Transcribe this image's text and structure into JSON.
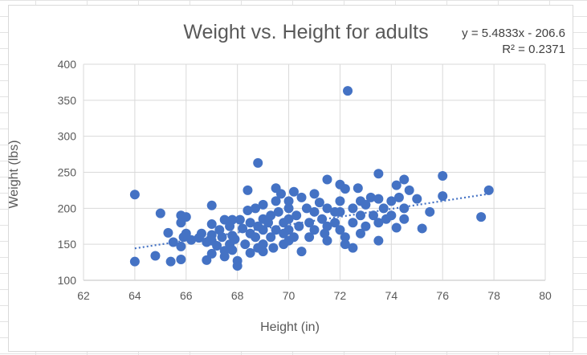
{
  "chart_data": {
    "type": "scatter",
    "title": "Weight vs. Height for adults",
    "xlabel": "Height (in)",
    "ylabel": "Weight (lbs)",
    "xlim": [
      62,
      80
    ],
    "ylim": [
      100,
      400
    ],
    "xticks": [
      "62",
      "64",
      "66",
      "68",
      "70",
      "72",
      "74",
      "76",
      "78",
      "80"
    ],
    "yticks": [
      "100",
      "150",
      "200",
      "250",
      "300",
      "350",
      "400"
    ],
    "grid": true,
    "marker_color": "#4472C4",
    "trendline": {
      "type": "linear",
      "style": "dotted",
      "slope": 5.4833,
      "intercept": -206.6,
      "x_range": [
        64,
        77.8
      ],
      "equation_label": "y = 5.4833x - 206.6",
      "r2_label": "R² = 0.2371"
    },
    "series": [
      {
        "points": [
          [
            64,
            219
          ],
          [
            64,
            126
          ],
          [
            64.8,
            134
          ],
          [
            65,
            193
          ],
          [
            65.3,
            166
          ],
          [
            65.4,
            126
          ],
          [
            65.5,
            153
          ],
          [
            65.8,
            190
          ],
          [
            65.8,
            180
          ],
          [
            65.8,
            147
          ],
          [
            65.8,
            129
          ],
          [
            65.9,
            160
          ],
          [
            66,
            188
          ],
          [
            66,
            165
          ],
          [
            66.2,
            156
          ],
          [
            66.5,
            159
          ],
          [
            66.6,
            165
          ],
          [
            66.8,
            128
          ],
          [
            66.8,
            153
          ],
          [
            67,
            204
          ],
          [
            67,
            178
          ],
          [
            67,
            163
          ],
          [
            67,
            155
          ],
          [
            67,
            137
          ],
          [
            67.2,
            148
          ],
          [
            67.3,
            170
          ],
          [
            67.4,
            160
          ],
          [
            67.5,
            184
          ],
          [
            67.5,
            141
          ],
          [
            67.5,
            133
          ],
          [
            67.7,
            175
          ],
          [
            67.7,
            150
          ],
          [
            67.8,
            184
          ],
          [
            67.8,
            162
          ],
          [
            67.8,
            142
          ],
          [
            67.9,
            157
          ],
          [
            68,
            127
          ],
          [
            68,
            120
          ],
          [
            68.1,
            184
          ],
          [
            68.2,
            172
          ],
          [
            68.3,
            150
          ],
          [
            68.4,
            225
          ],
          [
            68.4,
            197
          ],
          [
            68.5,
            180
          ],
          [
            68.5,
            165
          ],
          [
            68.5,
            138
          ],
          [
            68.7,
            200
          ],
          [
            68.7,
            160
          ],
          [
            68.8,
            263
          ],
          [
            68.8,
            175
          ],
          [
            68.8,
            145
          ],
          [
            69,
            205
          ],
          [
            69,
            185
          ],
          [
            69,
            170
          ],
          [
            69,
            150
          ],
          [
            69,
            140
          ],
          [
            69.2,
            180
          ],
          [
            69.3,
            190
          ],
          [
            69.3,
            160
          ],
          [
            69.4,
            145
          ],
          [
            69.5,
            228
          ],
          [
            69.5,
            210
          ],
          [
            69.5,
            170
          ],
          [
            69.6,
            195
          ],
          [
            69.7,
            220
          ],
          [
            69.8,
            180
          ],
          [
            69.8,
            165
          ],
          [
            69.8,
            150
          ],
          [
            70,
            210
          ],
          [
            70,
            200
          ],
          [
            70,
            185
          ],
          [
            70,
            170
          ],
          [
            70,
            155
          ],
          [
            70.2,
            223
          ],
          [
            70.2,
            160
          ],
          [
            70.3,
            190
          ],
          [
            70.4,
            175
          ],
          [
            70.5,
            215
          ],
          [
            70.5,
            140
          ],
          [
            70.7,
            200
          ],
          [
            70.8,
            180
          ],
          [
            70.8,
            160
          ],
          [
            71,
            220
          ],
          [
            71,
            195
          ],
          [
            71,
            170
          ],
          [
            71.2,
            208
          ],
          [
            71.3,
            185
          ],
          [
            71.4,
            165
          ],
          [
            71.5,
            240
          ],
          [
            71.5,
            200
          ],
          [
            71.5,
            175
          ],
          [
            71.5,
            155
          ],
          [
            71.8,
            195
          ],
          [
            71.8,
            180
          ],
          [
            72,
            233
          ],
          [
            72,
            210
          ],
          [
            72,
            195
          ],
          [
            72,
            170
          ],
          [
            72.2,
            227
          ],
          [
            72.2,
            160
          ],
          [
            72.2,
            150
          ],
          [
            72.3,
            363
          ],
          [
            72.5,
            200
          ],
          [
            72.5,
            180
          ],
          [
            72.5,
            145
          ],
          [
            72.7,
            228
          ],
          [
            72.8,
            210
          ],
          [
            72.8,
            190
          ],
          [
            72.8,
            165
          ],
          [
            73,
            205
          ],
          [
            73,
            175
          ],
          [
            73.2,
            215
          ],
          [
            73.3,
            190
          ],
          [
            73.5,
            248
          ],
          [
            73.5,
            213
          ],
          [
            73.5,
            180
          ],
          [
            73.5,
            155
          ],
          [
            73.7,
            200
          ],
          [
            73.8,
            185
          ],
          [
            74,
            210
          ],
          [
            74,
            190
          ],
          [
            74.2,
            232
          ],
          [
            74.2,
            173
          ],
          [
            74.3,
            215
          ],
          [
            74.5,
            240
          ],
          [
            74.5,
            200
          ],
          [
            74.5,
            185
          ],
          [
            74.7,
            225
          ],
          [
            75,
            213
          ],
          [
            75.2,
            172
          ],
          [
            75.5,
            195
          ],
          [
            76,
            245
          ],
          [
            76,
            217
          ],
          [
            77.5,
            188
          ],
          [
            77.8,
            225
          ]
        ]
      }
    ]
  }
}
